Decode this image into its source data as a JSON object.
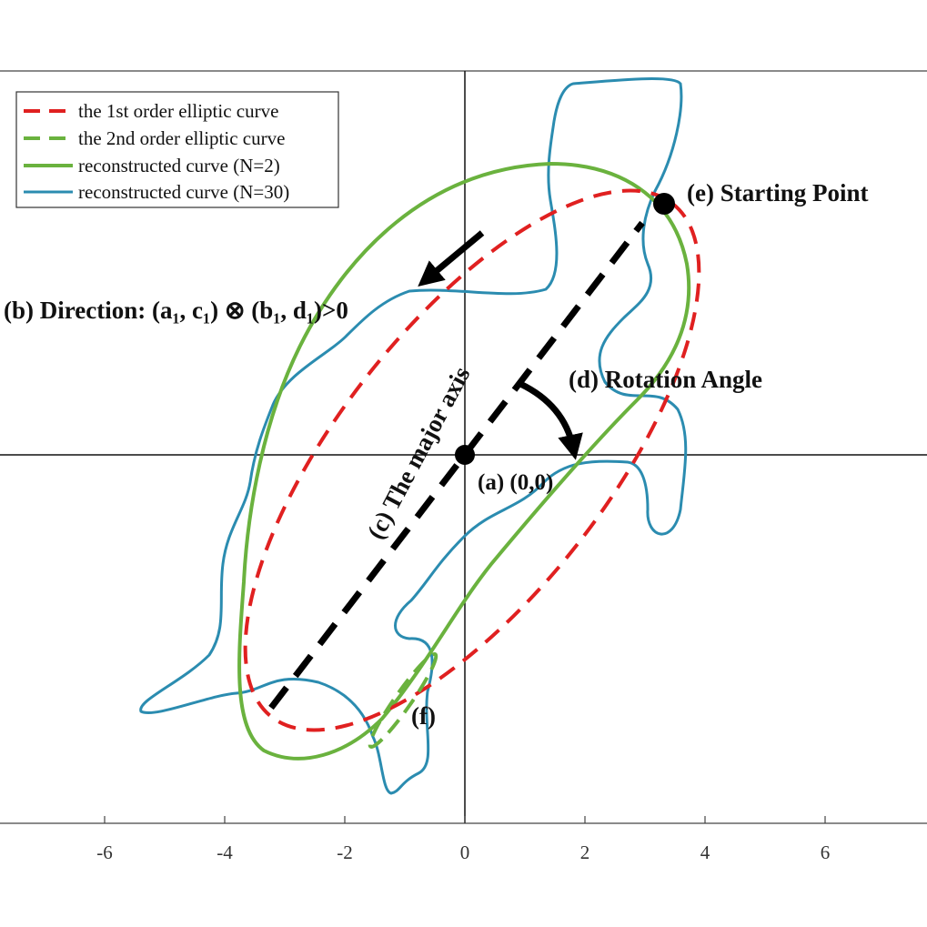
{
  "legend": [
    "the 1st order elliptic curve",
    "the 2nd order elliptic curve",
    "reconstructed curve (N=2)",
    "reconstructed curve (N=30)"
  ],
  "annotations": {
    "starting_point": "(e) Starting Point",
    "direction": "(b) Direction: (a₁, c₁) ⊗ (b₁, d₁)>0",
    "rotation_angle": "(d) Rotation Angle",
    "origin": "(a) (0,0)",
    "major_axis": "(c) The major axis",
    "f": "(f)"
  },
  "x_ticks": [
    -6,
    -4,
    -2,
    0,
    2,
    4,
    6
  ]
}
